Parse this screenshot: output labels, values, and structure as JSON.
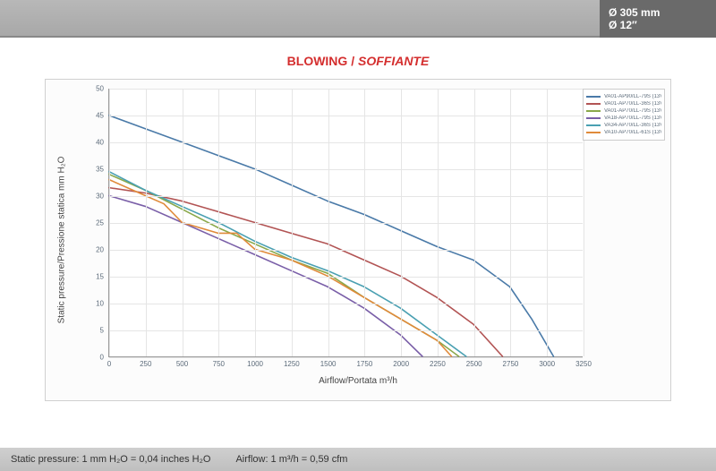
{
  "header": {
    "size_mm": "Ø 305 mm",
    "size_in": "Ø 12″"
  },
  "title": {
    "main": "BLOWING / ",
    "sub": "SOFFIANTE"
  },
  "chart": {
    "type": "line",
    "yaxis_label": "Static pressure/Pressione statica  mm  H₂O",
    "xaxis_label": "Airflow/Portata  m³/h",
    "xlim": [
      0,
      3250
    ],
    "ylim": [
      0,
      50
    ],
    "xtick_step": 250,
    "ytick_step": 5,
    "background_color": "#ffffff",
    "grid_color": "#e5e5e5",
    "axis_color": "#999999",
    "tick_fontsize": 8,
    "label_fontsize": 10,
    "line_width": 1.6,
    "series": [
      {
        "label": "VA01-AP90/LL-79S (13V)",
        "color": "#4a7aa8",
        "points": [
          [
            0,
            45
          ],
          [
            250,
            42.5
          ],
          [
            500,
            40
          ],
          [
            750,
            37.5
          ],
          [
            1000,
            35
          ],
          [
            1250,
            32
          ],
          [
            1500,
            29
          ],
          [
            1750,
            26.5
          ],
          [
            2000,
            23.5
          ],
          [
            2250,
            20.5
          ],
          [
            2500,
            18
          ],
          [
            2750,
            13
          ],
          [
            2900,
            7
          ],
          [
            3050,
            0
          ]
        ]
      },
      {
        "label": "VA01-AP70/LL-36S (13V)",
        "color": "#b25454",
        "points": [
          [
            0,
            31.5
          ],
          [
            250,
            30.5
          ],
          [
            500,
            29
          ],
          [
            750,
            27
          ],
          [
            1000,
            25
          ],
          [
            1250,
            23
          ],
          [
            1500,
            21
          ],
          [
            1750,
            18
          ],
          [
            2000,
            15
          ],
          [
            2250,
            11
          ],
          [
            2500,
            6
          ],
          [
            2700,
            0
          ]
        ]
      },
      {
        "label": "VA01-AP70/LL-79S (13V)",
        "color": "#8aa84a",
        "points": [
          [
            0,
            34
          ],
          [
            250,
            31
          ],
          [
            500,
            27.5
          ],
          [
            750,
            24
          ],
          [
            1000,
            21
          ],
          [
            1250,
            18
          ],
          [
            1500,
            15.5
          ],
          [
            1750,
            11
          ],
          [
            2000,
            7
          ],
          [
            2250,
            3
          ],
          [
            2400,
            0
          ]
        ]
      },
      {
        "label": "VA18-AP70/LL-79S (13V)",
        "color": "#7a5fa8",
        "points": [
          [
            0,
            30
          ],
          [
            250,
            28
          ],
          [
            500,
            25
          ],
          [
            750,
            22
          ],
          [
            1000,
            19
          ],
          [
            1250,
            16
          ],
          [
            1500,
            13
          ],
          [
            1750,
            9
          ],
          [
            2000,
            4
          ],
          [
            2150,
            0
          ]
        ]
      },
      {
        "label": "VA34-AP70/LL-36S (13V)",
        "color": "#4aa0b2",
        "points": [
          [
            0,
            34.5
          ],
          [
            250,
            31
          ],
          [
            500,
            28
          ],
          [
            750,
            25
          ],
          [
            1000,
            21.5
          ],
          [
            1250,
            18.5
          ],
          [
            1500,
            16
          ],
          [
            1750,
            13
          ],
          [
            2000,
            9
          ],
          [
            2250,
            4
          ],
          [
            2450,
            0
          ]
        ]
      },
      {
        "label": "VA10-AP70/LL-61S (13V)",
        "color": "#e08a3a",
        "points": [
          [
            0,
            33
          ],
          [
            250,
            30
          ],
          [
            375,
            28.5
          ],
          [
            500,
            25
          ],
          [
            750,
            23
          ],
          [
            875,
            23
          ],
          [
            1000,
            20
          ],
          [
            1250,
            18
          ],
          [
            1500,
            15
          ],
          [
            1750,
            11
          ],
          [
            2000,
            7
          ],
          [
            2250,
            3
          ],
          [
            2350,
            0
          ]
        ]
      }
    ]
  },
  "footer": {
    "pressure_note": "Static pressure: 1 mm H₂O = 0,04 inches H₂O",
    "airflow_note": "Airflow: 1 m³/h = 0,59 cfm"
  }
}
